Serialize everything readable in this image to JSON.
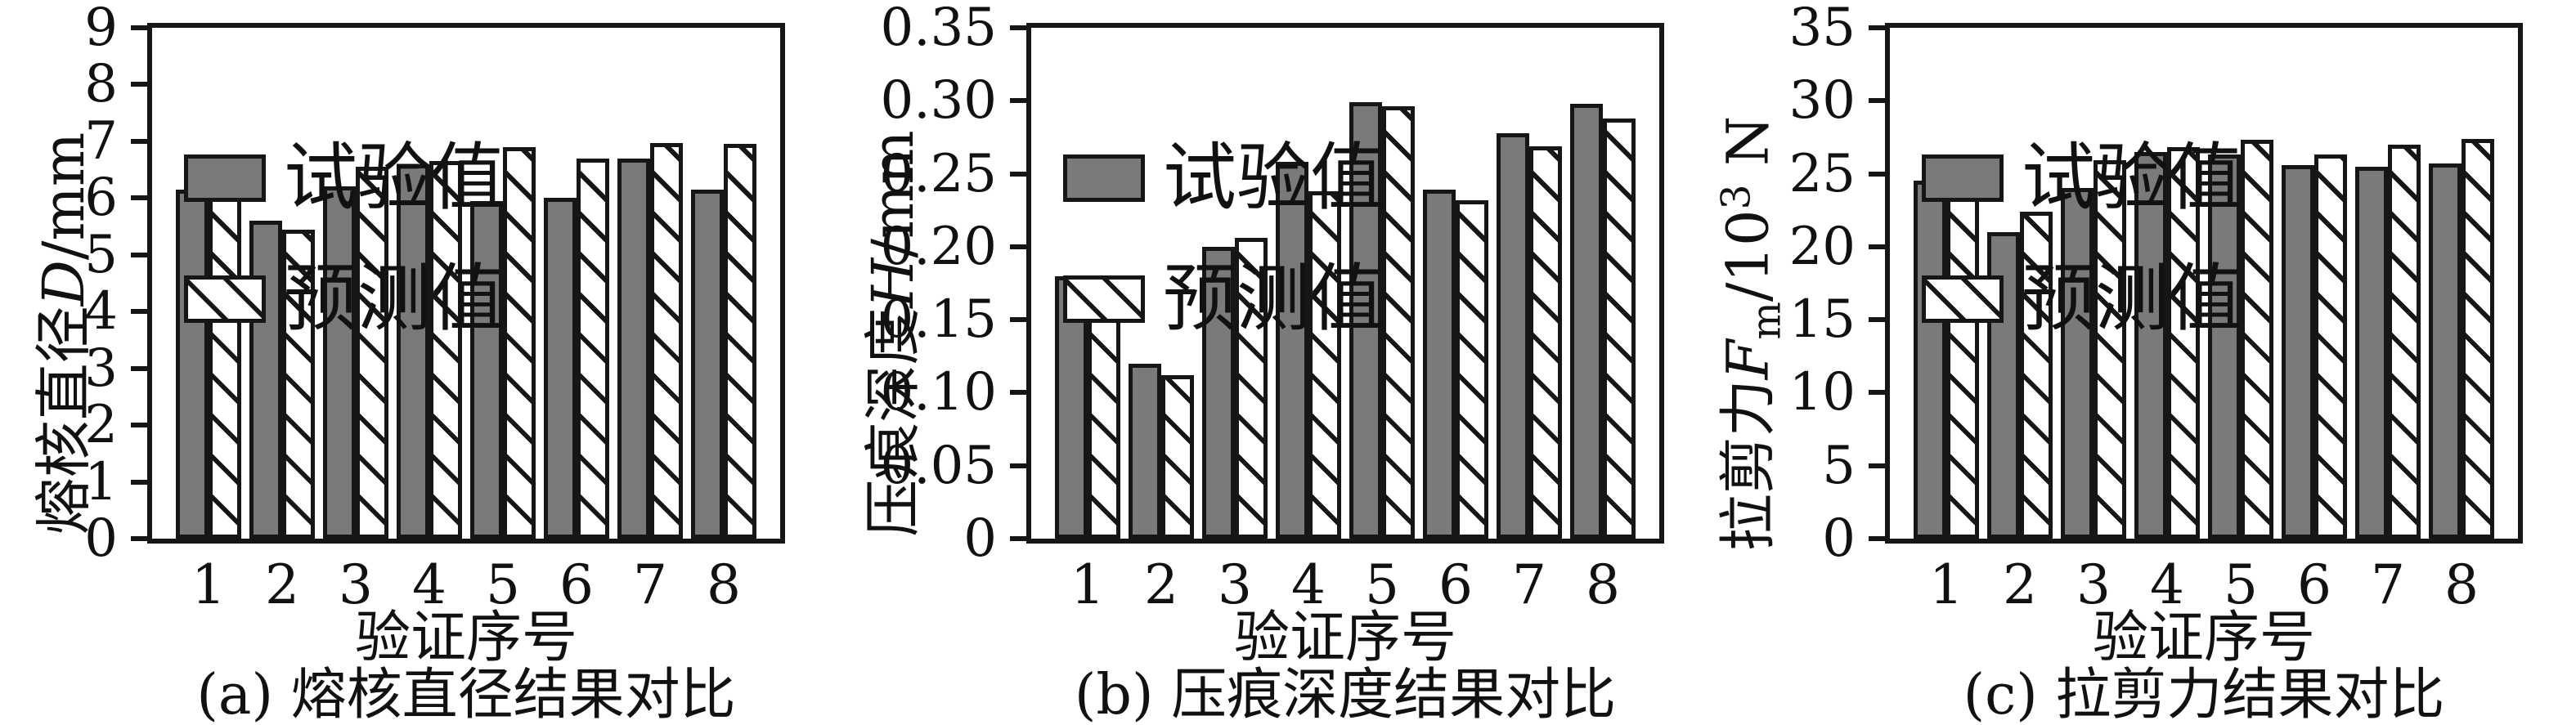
{
  "figure": {
    "background": "#ffffff",
    "legend": {
      "items": [
        {
          "label": "试验值",
          "type": "solid"
        },
        {
          "label": "预测值",
          "type": "hatched"
        }
      ]
    },
    "colors": {
      "bar_fill": "#7a7a7a",
      "bar_border": "#161616",
      "hatch_line": "#161616",
      "text": "#111111"
    }
  },
  "chart_data": [
    {
      "type": "bar",
      "panel": "a",
      "caption": "(a) 熔核直径结果对比",
      "xlabel": "验证序号",
      "ylabel_text": "熔核直径D/mm",
      "ylabel_parts": [
        {
          "t": "熔核直径"
        },
        {
          "t": "D",
          "style": "italic"
        },
        {
          "t": "/mm"
        }
      ],
      "categories": [
        "1",
        "2",
        "3",
        "4",
        "5",
        "6",
        "7",
        "8"
      ],
      "series": [
        {
          "name": "试验值",
          "pattern": "solid",
          "values": [
            6.15,
            5.6,
            6.2,
            6.6,
            5.95,
            6.0,
            6.7,
            6.15
          ]
        },
        {
          "name": "预测值",
          "pattern": "hatched",
          "values": [
            6.22,
            5.45,
            6.55,
            6.65,
            6.9,
            6.7,
            6.97,
            6.95
          ]
        }
      ],
      "ylim": [
        0,
        9
      ],
      "yticks": [
        "0",
        "1",
        "2",
        "3",
        "4",
        "5",
        "6",
        "7",
        "8",
        "9"
      ],
      "legend_position": "top-left",
      "grid": false
    },
    {
      "type": "bar",
      "panel": "b",
      "caption": "(b) 压痕深度结果对比",
      "xlabel": "验证序号",
      "ylabel_text": "压痕深度H/mm",
      "ylabel_parts": [
        {
          "t": "压痕深度"
        },
        {
          "t": "H",
          "style": "italic"
        },
        {
          "t": "/mm"
        }
      ],
      "categories": [
        "1",
        "2",
        "3",
        "4",
        "5",
        "6",
        "7",
        "8"
      ],
      "series": [
        {
          "name": "试验值",
          "pattern": "solid",
          "values": [
            0.18,
            0.12,
            0.2,
            0.258,
            0.299,
            0.239,
            0.278,
            0.298
          ]
        },
        {
          "name": "预测值",
          "pattern": "hatched",
          "values": [
            0.167,
            0.112,
            0.206,
            0.238,
            0.296,
            0.232,
            0.269,
            0.288
          ]
        }
      ],
      "ylim": [
        0,
        0.35
      ],
      "yticks": [
        "0",
        "0.05",
        "0.10",
        "0.15",
        "0.20",
        "0.25",
        "0.30",
        "0.35"
      ],
      "legend_position": "top-left",
      "grid": false
    },
    {
      "type": "bar",
      "panel": "c",
      "caption": "(c) 拉剪力结果对比",
      "xlabel": "验证序号",
      "ylabel_text": "拉剪力Fm/10³ N",
      "ylabel_parts": [
        {
          "t": "拉剪力"
        },
        {
          "t": "F",
          "style": "italic"
        },
        {
          "t": "m",
          "style": "sub"
        },
        {
          "t": "/10"
        },
        {
          "t": "3",
          "style": "sup"
        },
        {
          "t": " N"
        }
      ],
      "categories": [
        "1",
        "2",
        "3",
        "4",
        "5",
        "6",
        "7",
        "8"
      ],
      "series": [
        {
          "name": "试验值",
          "pattern": "solid",
          "values": [
            24.5,
            21.0,
            24.0,
            26.5,
            26.3,
            25.6,
            25.5,
            25.7
          ]
        },
        {
          "name": "预测值",
          "pattern": "hatched",
          "values": [
            24.7,
            22.4,
            25.9,
            26.8,
            27.3,
            26.3,
            27.0,
            27.4
          ]
        }
      ],
      "ylim": [
        0,
        35
      ],
      "yticks": [
        "0",
        "5",
        "10",
        "15",
        "20",
        "25",
        "30",
        "35"
      ],
      "legend_position": "top-left",
      "grid": false
    }
  ]
}
